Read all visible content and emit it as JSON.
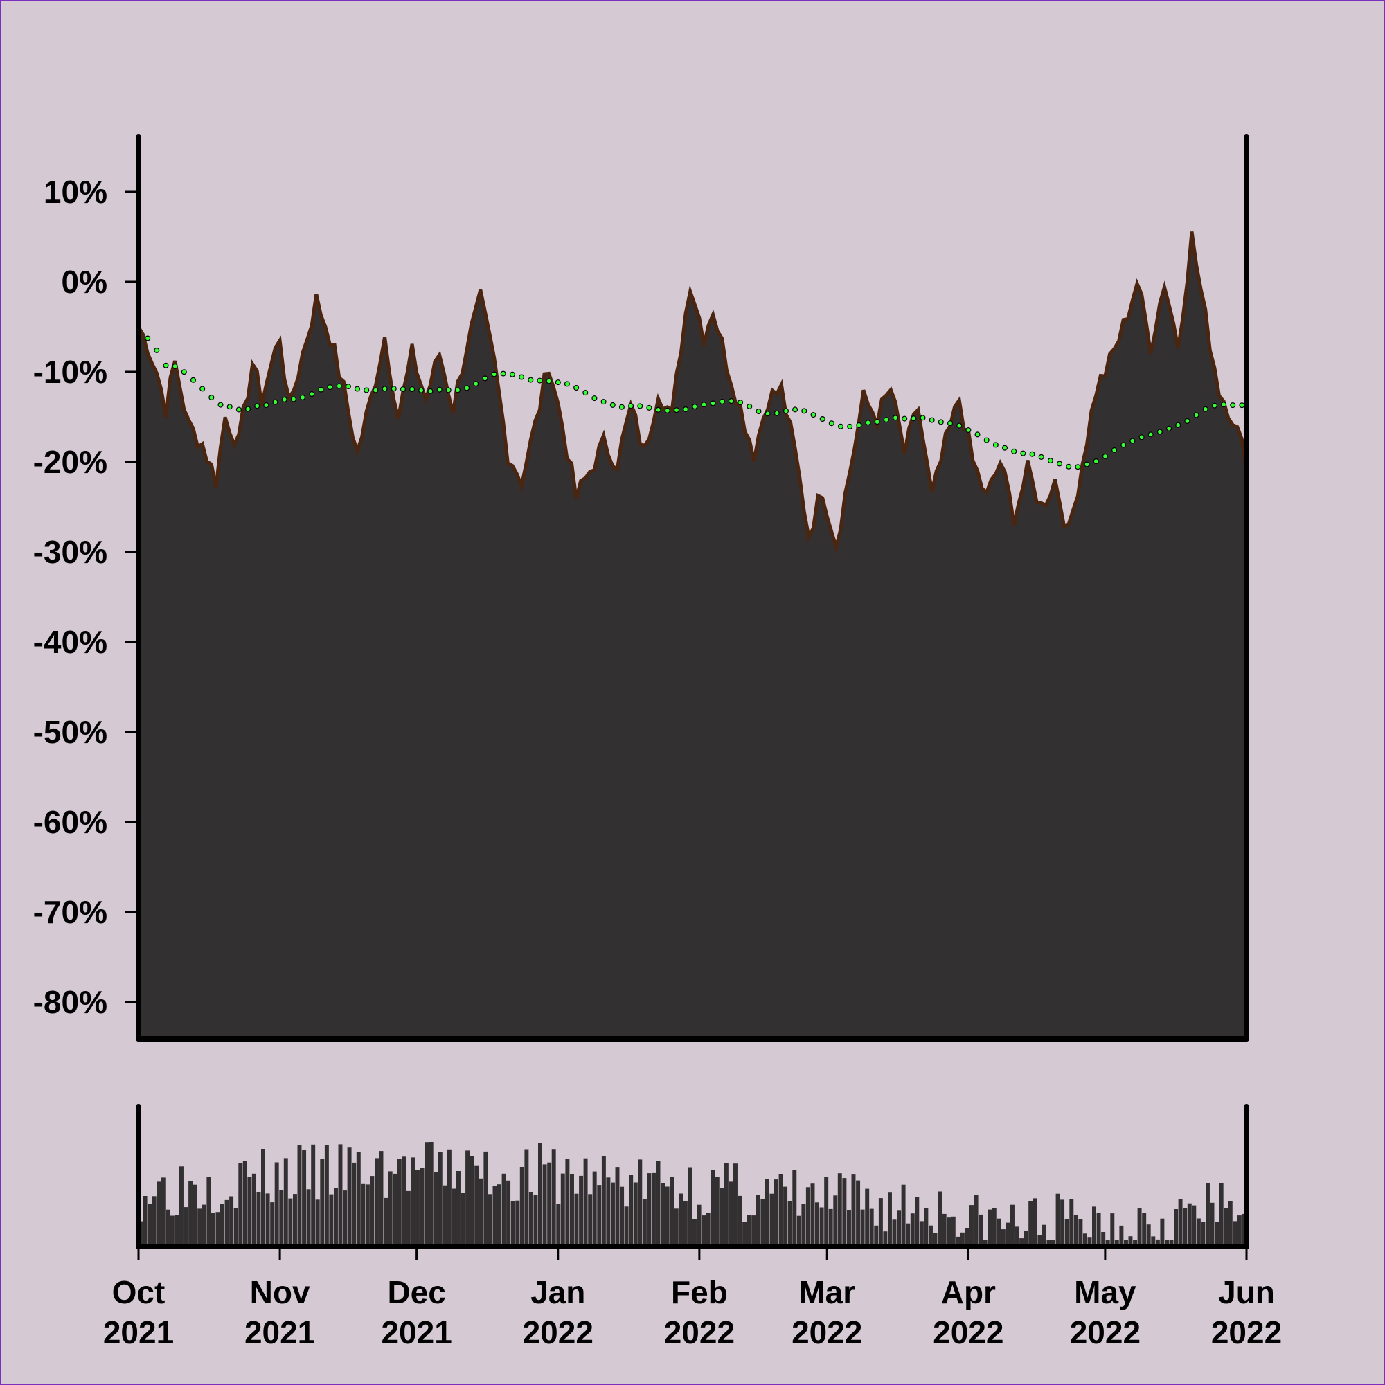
{
  "chart_data": {
    "type": "area",
    "title": "",
    "xlabel": "",
    "ylabel": "",
    "ylim": [
      -85,
      16
    ],
    "y_tick_labels": [
      "10%",
      "0%",
      "-10%",
      "-20%",
      "-30%",
      "-40%",
      "-50%",
      "-60%",
      "-70%",
      "-80%"
    ],
    "y_tick_values": [
      10,
      0,
      -10,
      -20,
      -30,
      -40,
      -50,
      -60,
      -70,
      -80
    ],
    "x_range": [
      "2021-10-01",
      "2022-06-01"
    ],
    "x_ticks": [
      {
        "date": "2021-10-01",
        "month": "Oct",
        "year": "2021"
      },
      {
        "date": "2021-11-01",
        "month": "Nov",
        "year": "2021"
      },
      {
        "date": "2021-12-01",
        "month": "Dec",
        "year": "2021"
      },
      {
        "date": "2022-01-01",
        "month": "Jan",
        "year": "2022"
      },
      {
        "date": "2022-02-01",
        "month": "Feb",
        "year": "2022"
      },
      {
        "date": "2022-03-01",
        "month": "Mar",
        "year": "2022"
      },
      {
        "date": "2022-04-01",
        "month": "Apr",
        "year": "2022"
      },
      {
        "date": "2022-05-01",
        "month": "May",
        "year": "2022"
      },
      {
        "date": "2022-06-01",
        "month": "Jun",
        "year": "2022"
      }
    ],
    "series": [
      {
        "role": "main",
        "color": "#4a2510",
        "fill": "#333031",
        "points": [
          [
            "2021-10-01",
            -5
          ],
          [
            "2021-10-03",
            -7
          ],
          [
            "2021-10-05",
            -10
          ],
          [
            "2021-10-07",
            -14
          ],
          [
            "2021-10-09",
            -9
          ],
          [
            "2021-10-12",
            -16
          ],
          [
            "2021-10-15",
            -18
          ],
          [
            "2021-10-18",
            -22
          ],
          [
            "2021-10-20",
            -15
          ],
          [
            "2021-10-23",
            -18
          ],
          [
            "2021-10-26",
            -9
          ],
          [
            "2021-10-28",
            -13
          ],
          [
            "2021-11-01",
            -6
          ],
          [
            "2021-11-03",
            -14
          ],
          [
            "2021-11-06",
            -8
          ],
          [
            "2021-11-09",
            -2
          ],
          [
            "2021-11-12",
            -6
          ],
          [
            "2021-11-15",
            -12
          ],
          [
            "2021-11-18",
            -19
          ],
          [
            "2021-11-21",
            -13
          ],
          [
            "2021-11-24",
            -6
          ],
          [
            "2021-11-27",
            -15
          ],
          [
            "2021-11-30",
            -8
          ],
          [
            "2021-12-03",
            -13
          ],
          [
            "2021-12-06",
            -8
          ],
          [
            "2021-12-09",
            -14
          ],
          [
            "2021-12-12",
            -7
          ],
          [
            "2021-12-15",
            -2
          ],
          [
            "2021-12-18",
            -9
          ],
          [
            "2021-12-21",
            -19
          ],
          [
            "2021-12-24",
            -22
          ],
          [
            "2021-12-27",
            -16
          ],
          [
            "2021-12-30",
            -9
          ],
          [
            "2022-01-02",
            -16
          ],
          [
            "2022-01-05",
            -24
          ],
          [
            "2022-01-08",
            -21
          ],
          [
            "2022-01-11",
            -18
          ],
          [
            "2022-01-14",
            -20
          ],
          [
            "2022-01-17",
            -14
          ],
          [
            "2022-01-20",
            -19
          ],
          [
            "2022-01-23",
            -12
          ],
          [
            "2022-01-26",
            -15
          ],
          [
            "2022-01-28",
            -7
          ],
          [
            "2022-01-30",
            0
          ],
          [
            "2022-02-02",
            -6
          ],
          [
            "2022-02-04",
            -3
          ],
          [
            "2022-02-07",
            -9
          ],
          [
            "2022-02-10",
            -14
          ],
          [
            "2022-02-13",
            -19
          ],
          [
            "2022-02-16",
            -13
          ],
          [
            "2022-02-19",
            -12
          ],
          [
            "2022-02-22",
            -19
          ],
          [
            "2022-02-25",
            -28
          ],
          [
            "2022-02-28",
            -23
          ],
          [
            "2022-03-03",
            -29
          ],
          [
            "2022-03-06",
            -21
          ],
          [
            "2022-03-09",
            -13
          ],
          [
            "2022-03-12",
            -15
          ],
          [
            "2022-03-15",
            -12
          ],
          [
            "2022-03-18",
            -19
          ],
          [
            "2022-03-21",
            -14
          ],
          [
            "2022-03-24",
            -24
          ],
          [
            "2022-03-27",
            -18
          ],
          [
            "2022-03-30",
            -13
          ],
          [
            "2022-04-02",
            -20
          ],
          [
            "2022-04-05",
            -24
          ],
          [
            "2022-04-08",
            -20
          ],
          [
            "2022-04-11",
            -26
          ],
          [
            "2022-04-14",
            -21
          ],
          [
            "2022-04-17",
            -25
          ],
          [
            "2022-04-20",
            -22
          ],
          [
            "2022-04-23",
            -28
          ],
          [
            "2022-04-26",
            -20
          ],
          [
            "2022-04-29",
            -12
          ],
          [
            "2022-05-02",
            -9
          ],
          [
            "2022-05-05",
            -5
          ],
          [
            "2022-05-08",
            0
          ],
          [
            "2022-05-11",
            -7
          ],
          [
            "2022-05-14",
            0
          ],
          [
            "2022-05-17",
            -7
          ],
          [
            "2022-05-20",
            5
          ],
          [
            "2022-05-23",
            -4
          ],
          [
            "2022-05-26",
            -12
          ],
          [
            "2022-05-29",
            -15
          ],
          [
            "2022-06-01",
            -20
          ]
        ]
      },
      {
        "role": "moving-average",
        "color": "#33ff33",
        "points": []
      }
    ],
    "volume_panel": {
      "type": "bar",
      "fill": "#333031",
      "ylim": [
        0,
        1
      ]
    }
  }
}
